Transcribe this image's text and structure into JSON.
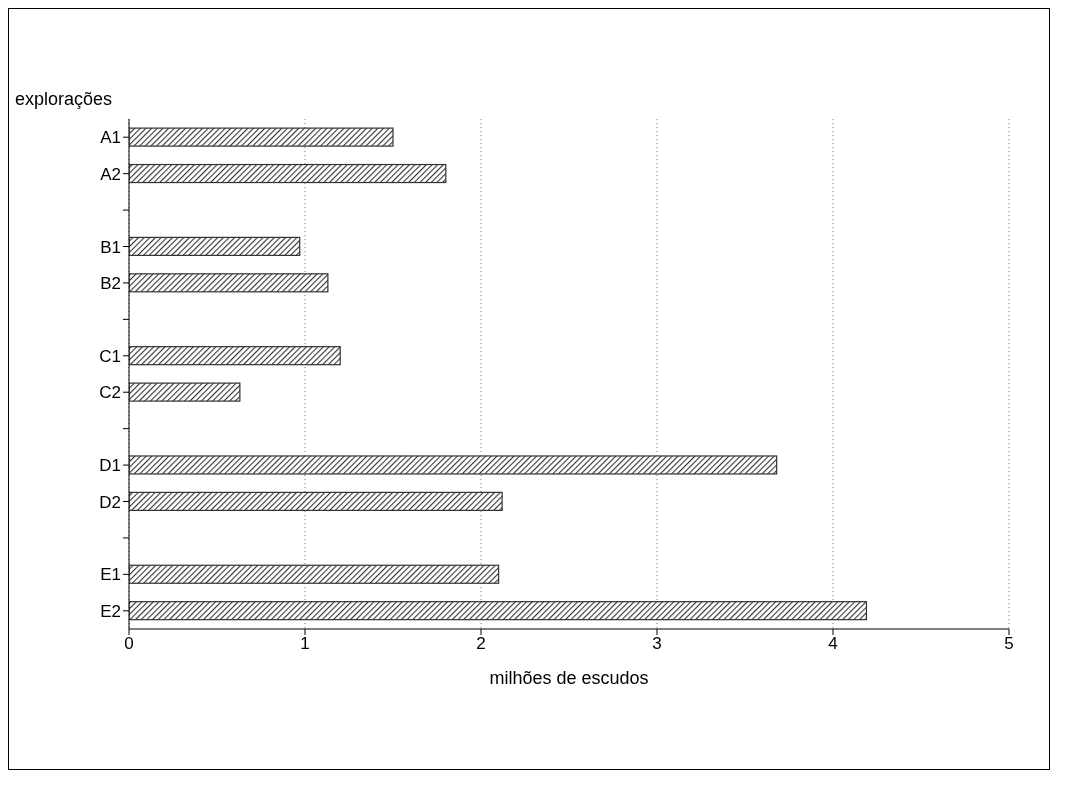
{
  "chart_data": {
    "type": "bar",
    "orientation": "horizontal",
    "ylabel": "explorações",
    "xlabel": "milhões de escudos",
    "categories": [
      "A1",
      "A2",
      null,
      "B1",
      "B2",
      null,
      "C1",
      "C2",
      null,
      "D1",
      "D2",
      null,
      "E1",
      "E2"
    ],
    "values": [
      1.5,
      1.8,
      null,
      0.97,
      1.13,
      null,
      1.2,
      0.63,
      null,
      3.68,
      2.12,
      null,
      2.1,
      4.19
    ],
    "color": "#333333",
    "xlim": [
      0,
      5
    ],
    "xticks": [
      0,
      1,
      2,
      3,
      4,
      5
    ],
    "grid": "x"
  }
}
